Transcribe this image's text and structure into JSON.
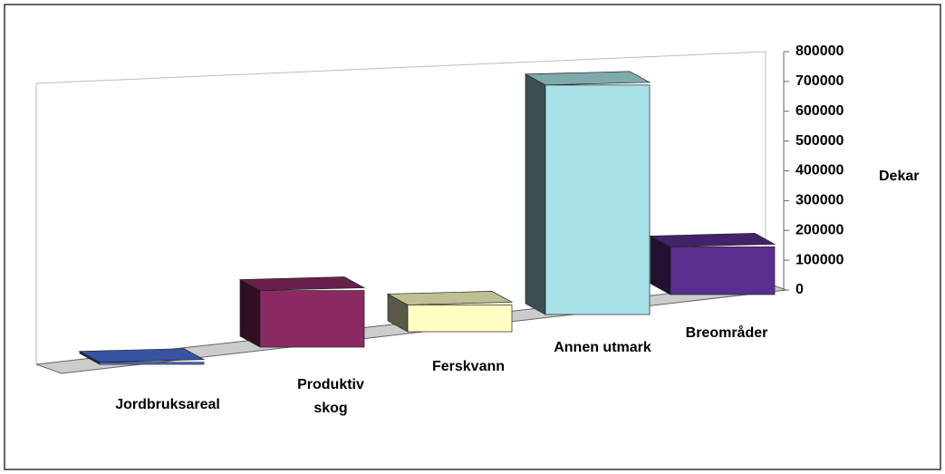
{
  "chart_data": {
    "type": "bar3d",
    "categories": [
      "Jordbruksareal",
      "Produktiv skog",
      "Ferskvann",
      "Annen utmark",
      "Breområder"
    ],
    "values": [
      7000,
      190000,
      90000,
      770000,
      160000
    ],
    "colors": [
      "#4a6fd8",
      "#8b2a62",
      "#ffffc4",
      "#a8e2e8",
      "#5b2d8e"
    ],
    "ylim": [
      0,
      800000
    ],
    "yticks": [
      0,
      100000,
      200000,
      300000,
      400000,
      500000,
      600000,
      700000,
      800000
    ],
    "ylabel": "Dekar"
  }
}
